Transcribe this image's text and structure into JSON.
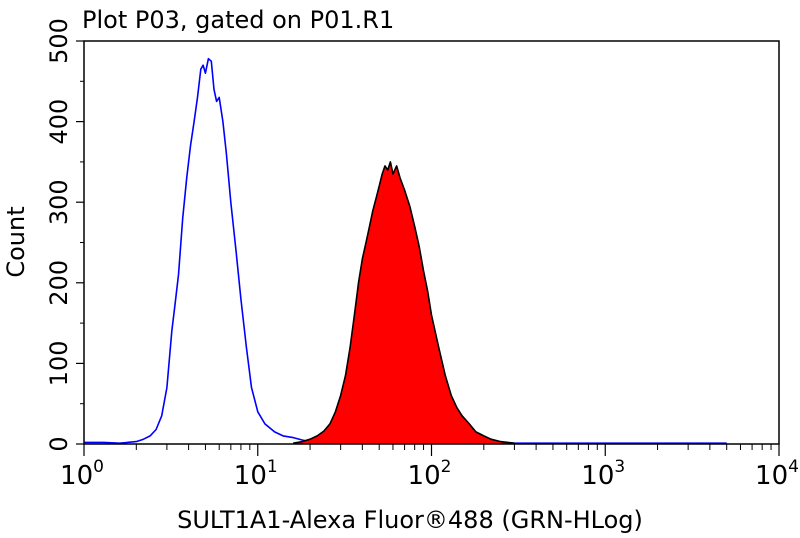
{
  "chart_data": {
    "type": "area",
    "title": "Plot P03, gated on P01.R1",
    "xlabel": "SULT1A1-Alexa Fluor®488 (GRN-HLog)",
    "ylabel": "Count",
    "x_scale": "log",
    "xlim": [
      1,
      10000
    ],
    "ylim": [
      0,
      500
    ],
    "x_ticks": [
      {
        "base": "10",
        "exp": "0",
        "value": 1
      },
      {
        "base": "10",
        "exp": "1",
        "value": 10
      },
      {
        "base": "10",
        "exp": "2",
        "value": 100
      },
      {
        "base": "10",
        "exp": "3",
        "value": 1000
      },
      {
        "base": "10",
        "exp": "4",
        "value": 10000
      }
    ],
    "y_ticks": [
      "0",
      "100",
      "200",
      "300",
      "400",
      "500"
    ],
    "grid": false,
    "series": [
      {
        "style": "outline",
        "color": "#0000ff",
        "points": [
          [
            1.0,
            2
          ],
          [
            1.3,
            2
          ],
          [
            1.6,
            1
          ],
          [
            2.0,
            3
          ],
          [
            2.2,
            6
          ],
          [
            2.4,
            10
          ],
          [
            2.6,
            18
          ],
          [
            2.8,
            35
          ],
          [
            3.0,
            70
          ],
          [
            3.2,
            140
          ],
          [
            3.35,
            175
          ],
          [
            3.5,
            210
          ],
          [
            3.7,
            280
          ],
          [
            3.9,
            330
          ],
          [
            4.1,
            370
          ],
          [
            4.3,
            400
          ],
          [
            4.5,
            430
          ],
          [
            4.7,
            465
          ],
          [
            4.85,
            470
          ],
          [
            5.0,
            460
          ],
          [
            5.2,
            478
          ],
          [
            5.4,
            475
          ],
          [
            5.6,
            440
          ],
          [
            5.8,
            425
          ],
          [
            6.0,
            430
          ],
          [
            6.3,
            400
          ],
          [
            6.6,
            360
          ],
          [
            7.0,
            300
          ],
          [
            7.5,
            240
          ],
          [
            8.0,
            180
          ],
          [
            8.6,
            120
          ],
          [
            9.2,
            70
          ],
          [
            10.0,
            40
          ],
          [
            11.0,
            25
          ],
          [
            12.5,
            15
          ],
          [
            14.0,
            10
          ],
          [
            16.0,
            8
          ],
          [
            18.0,
            5
          ],
          [
            20.0,
            3
          ],
          [
            25.0,
            2
          ],
          [
            40.0,
            1
          ],
          [
            100.0,
            1
          ],
          [
            1000.0,
            1
          ],
          [
            5000.0,
            1
          ]
        ]
      },
      {
        "style": "filled",
        "color": "#ff0000",
        "points": [
          [
            16.0,
            1
          ],
          [
            18.0,
            3
          ],
          [
            20.0,
            6
          ],
          [
            22.0,
            10
          ],
          [
            24.0,
            16
          ],
          [
            26.0,
            25
          ],
          [
            28.0,
            40
          ],
          [
            30.0,
            60
          ],
          [
            32.0,
            85
          ],
          [
            34.0,
            120
          ],
          [
            36.0,
            160
          ],
          [
            38.0,
            200
          ],
          [
            40.0,
            230
          ],
          [
            42.0,
            250
          ],
          [
            44.0,
            270
          ],
          [
            46.0,
            290
          ],
          [
            48.0,
            305
          ],
          [
            50.0,
            320
          ],
          [
            52.0,
            335
          ],
          [
            54.0,
            345
          ],
          [
            56.0,
            340
          ],
          [
            58.0,
            350
          ],
          [
            60.0,
            335
          ],
          [
            63.0,
            345
          ],
          [
            66.0,
            330
          ],
          [
            70.0,
            315
          ],
          [
            75.0,
            295
          ],
          [
            80.0,
            270
          ],
          [
            85.0,
            245
          ],
          [
            90.0,
            215
          ],
          [
            95.0,
            190
          ],
          [
            100.0,
            160
          ],
          [
            110.0,
            120
          ],
          [
            120.0,
            85
          ],
          [
            130.0,
            60
          ],
          [
            140.0,
            45
          ],
          [
            150.0,
            35
          ],
          [
            165.0,
            25
          ],
          [
            180.0,
            15
          ],
          [
            200.0,
            10
          ],
          [
            220.0,
            6
          ],
          [
            250.0,
            3
          ],
          [
            300.0,
            1
          ]
        ]
      }
    ]
  }
}
